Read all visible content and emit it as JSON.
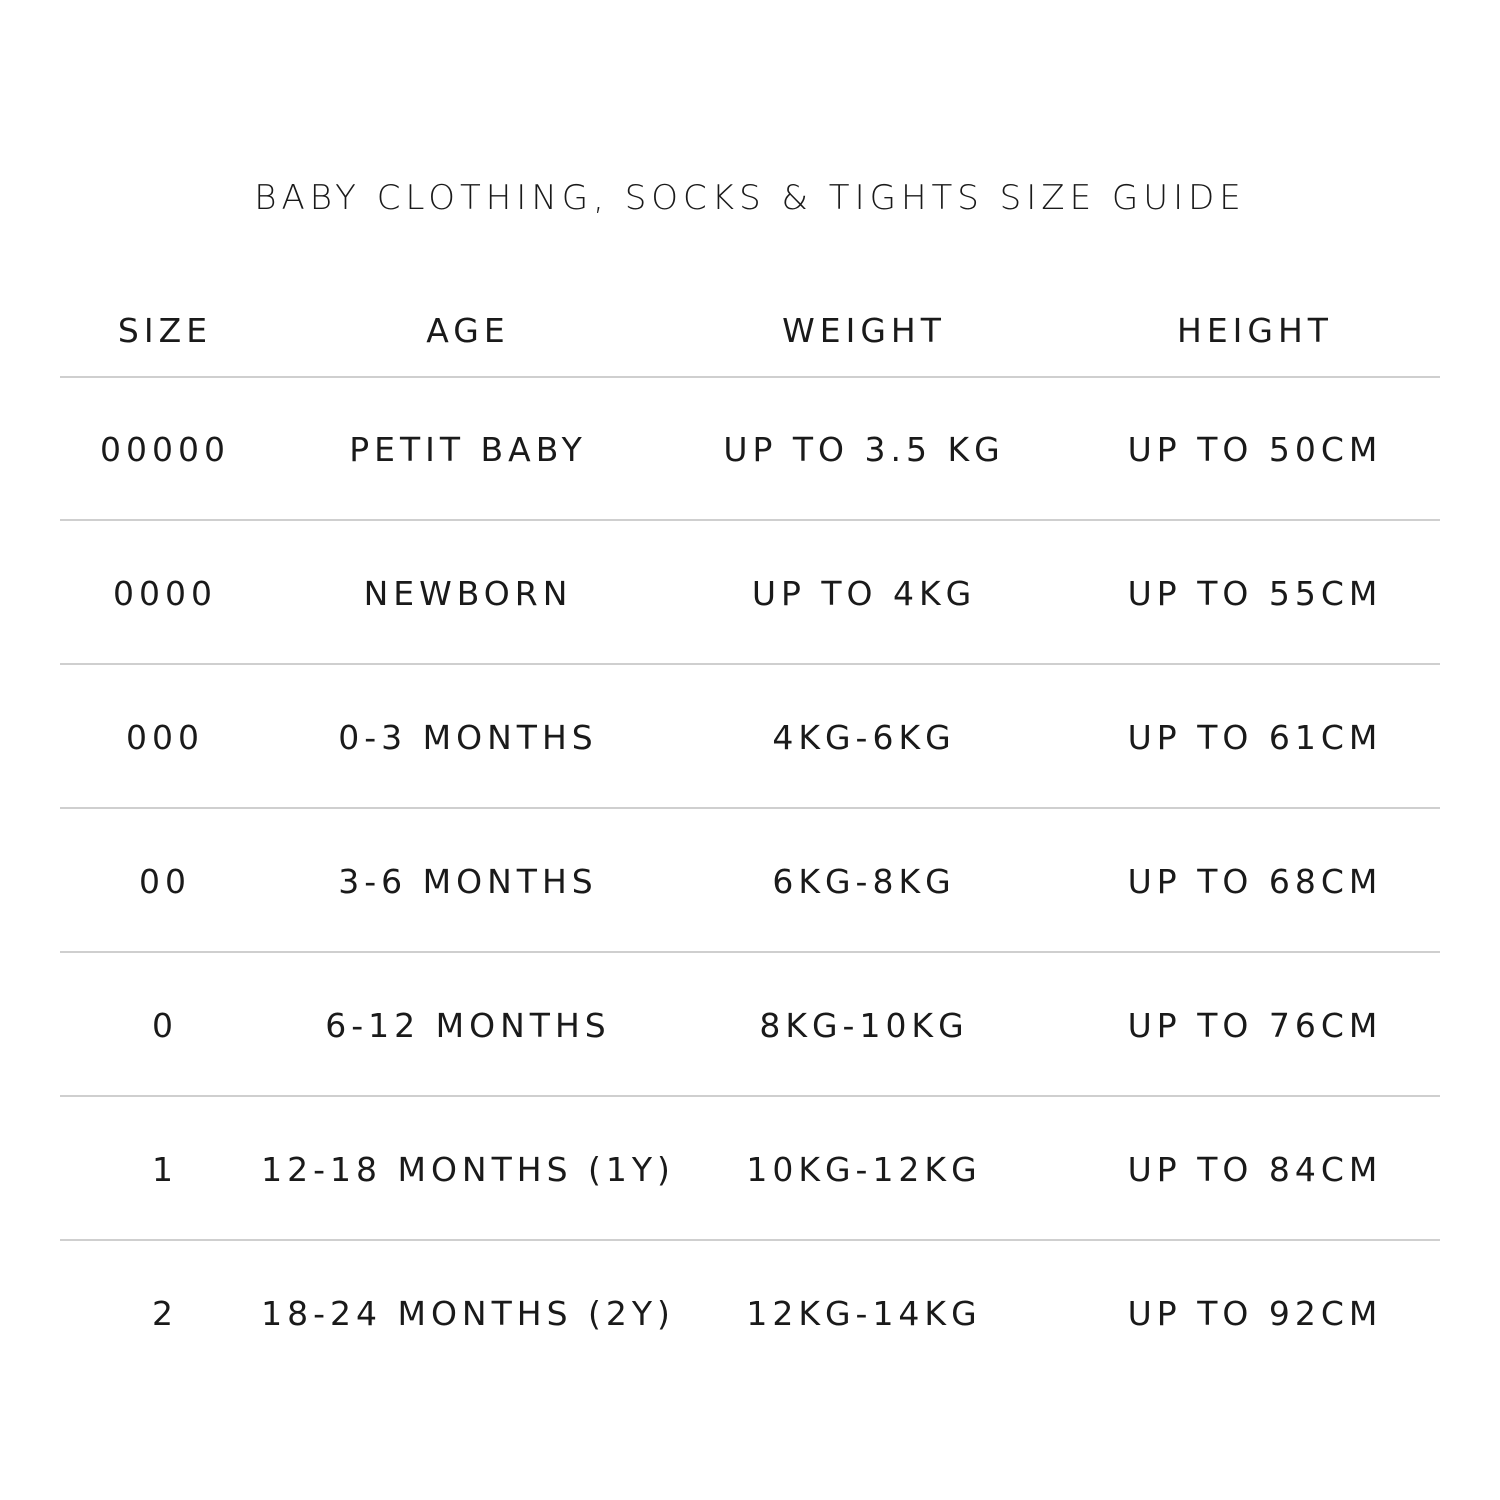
{
  "title": "BABY CLOTHING, SOCKS & TIGHTS SIZE GUIDE",
  "table": {
    "headers": [
      "SIZE",
      "AGE",
      "WEIGHT",
      "HEIGHT"
    ],
    "rows": [
      [
        "00000",
        "PETIT BABY",
        "UP TO 3.5 KG",
        "UP TO 50CM"
      ],
      [
        "0000",
        "NEWBORN",
        "UP TO 4KG",
        "UP TO 55CM"
      ],
      [
        "000",
        "0-3 MONTHS",
        "4KG-6KG",
        "UP TO 61CM"
      ],
      [
        "00",
        "3-6 MONTHS",
        "6KG-8KG",
        "UP TO 68CM"
      ],
      [
        "0",
        "6-12 MONTHS",
        "8KG-10KG",
        "UP TO 76CM"
      ],
      [
        "1",
        "12-18 MONTHS (1Y)",
        "10KG-12KG",
        "UP TO 84CM"
      ],
      [
        "2",
        "18-24 MONTHS (2Y)",
        "12KG-14KG",
        "UP TO 92CM"
      ]
    ]
  }
}
